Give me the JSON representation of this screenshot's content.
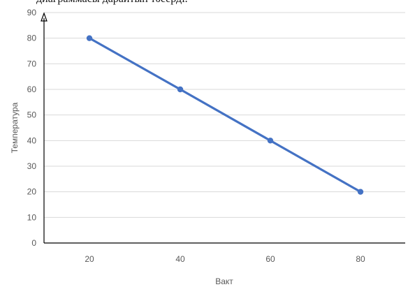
{
  "caption": "диаграммасы дарайтын тәсерді.",
  "chart_data": {
    "type": "line",
    "title": "",
    "xlabel": "Вакт",
    "ylabel": "Температура",
    "categories": [
      "20",
      "40",
      "60",
      "80"
    ],
    "series": [
      {
        "values": [
          80,
          60,
          40,
          20
        ]
      }
    ],
    "ylim": [
      0,
      90
    ],
    "yticks": [
      0,
      10,
      20,
      30,
      40,
      50,
      60,
      70,
      80,
      90
    ],
    "grid": "horizontal",
    "legend": "none",
    "colors": {
      "line": "#4472c4",
      "grid": "#d9d9d9",
      "axis": "#000000",
      "text": "#595959"
    }
  }
}
